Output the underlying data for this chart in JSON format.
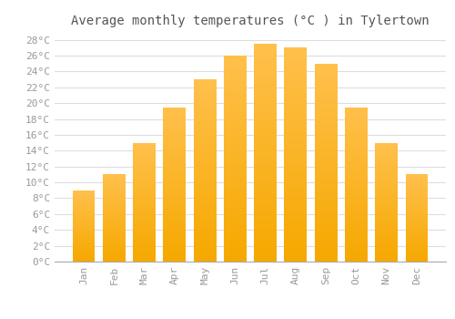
{
  "title": "Average monthly temperatures (°C ) in Tylertown",
  "months": [
    "Jan",
    "Feb",
    "Mar",
    "Apr",
    "May",
    "Jun",
    "Jul",
    "Aug",
    "Sep",
    "Oct",
    "Nov",
    "Dec"
  ],
  "temperatures": [
    9,
    11,
    15,
    19.5,
    23,
    26,
    27.5,
    27,
    25,
    19.5,
    15,
    11
  ],
  "bar_color_top": "#FFC04C",
  "bar_color_bottom": "#F5A800",
  "background_color": "#FFFFFF",
  "grid_color": "#DDDDDD",
  "text_color": "#999999",
  "title_color": "#555555",
  "ylim": [
    0,
    29
  ],
  "yticks": [
    0,
    2,
    4,
    6,
    8,
    10,
    12,
    14,
    16,
    18,
    20,
    22,
    24,
    26,
    28
  ],
  "title_fontsize": 10,
  "tick_fontsize": 8,
  "font_family": "monospace"
}
